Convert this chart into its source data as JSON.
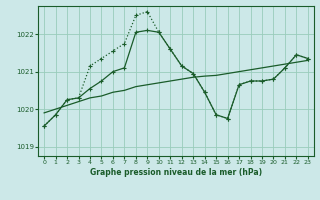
{
  "bg_color": "#cce8e8",
  "grid_color": "#99ccbb",
  "line_color": "#1a5c2a",
  "title": "Graphe pression niveau de la mer (hPa)",
  "xlim": [
    -0.5,
    23.5
  ],
  "ylim": [
    1018.75,
    1022.75
  ],
  "yticks": [
    1019,
    1020,
    1021,
    1022
  ],
  "xticks": [
    0,
    1,
    2,
    3,
    4,
    5,
    6,
    7,
    8,
    9,
    10,
    11,
    12,
    13,
    14,
    15,
    16,
    17,
    18,
    19,
    20,
    21,
    22,
    23
  ],
  "series1_x": [
    0,
    1,
    2,
    3,
    4,
    5,
    6,
    7,
    8,
    9,
    10,
    11,
    12,
    13,
    14,
    15,
    16,
    17,
    18,
    19,
    20,
    21,
    22,
    23
  ],
  "series1_y": [
    1019.9,
    1020.0,
    1020.1,
    1020.2,
    1020.3,
    1020.35,
    1020.45,
    1020.5,
    1020.6,
    1020.65,
    1020.7,
    1020.75,
    1020.8,
    1020.85,
    1020.88,
    1020.9,
    1020.95,
    1021.0,
    1021.05,
    1021.1,
    1021.15,
    1021.2,
    1021.25,
    1021.3
  ],
  "series2_x": [
    0,
    1,
    2,
    3,
    4,
    5,
    6,
    7,
    8,
    9,
    10,
    11,
    12,
    13,
    14,
    15,
    16,
    17,
    18,
    19,
    20,
    21,
    22,
    23
  ],
  "series2_y": [
    1019.55,
    1019.85,
    1020.25,
    1020.3,
    1020.55,
    1020.75,
    1021.0,
    1021.1,
    1022.05,
    1022.1,
    1022.05,
    1021.6,
    1021.15,
    1020.95,
    1020.45,
    1019.85,
    1019.75,
    1020.65,
    1020.75,
    1020.75,
    1020.8,
    1021.1,
    1021.45,
    1021.35
  ],
  "series3_x": [
    0,
    1,
    2,
    3,
    4,
    5,
    6,
    7,
    8,
    9,
    10,
    11,
    12,
    13,
    14,
    15,
    16,
    17,
    18,
    19,
    20,
    21,
    22,
    23
  ],
  "series3_y": [
    1019.55,
    1019.85,
    1020.25,
    1020.3,
    1021.15,
    1021.35,
    1021.55,
    1021.75,
    1022.5,
    1022.6,
    1022.05,
    1021.6,
    1021.15,
    1020.95,
    1020.45,
    1019.85,
    1019.75,
    1020.65,
    1020.75,
    1020.75,
    1020.8,
    1021.1,
    1021.45,
    1021.35
  ]
}
